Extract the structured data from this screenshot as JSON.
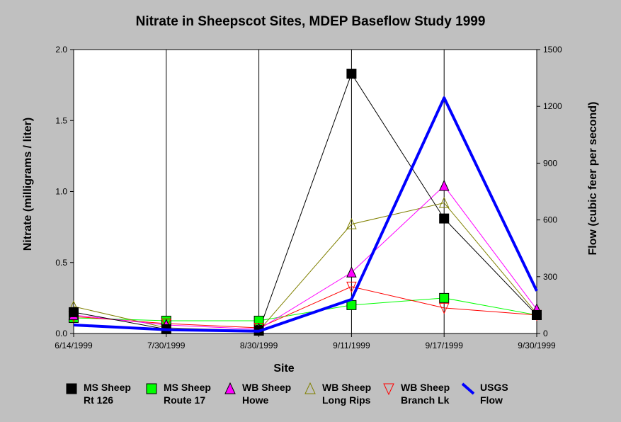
{
  "title": "Nitrate in Sheepscot Sites, MDEP Baseflow Study 1999",
  "chart_data": {
    "type": "line",
    "title": "Nitrate in Sheepscot Sites, MDEP Baseflow Study 1999",
    "xlabel": "Site",
    "ylabel": "Nitrate (milligrams / liter)",
    "ylabel_right": "Flow (cubic feer per second)",
    "categories": [
      "6/14/1999",
      "7/30/1999",
      "8/30/1999",
      "9/11/1999",
      "9/17/1999",
      "9/30/1999"
    ],
    "ylim": [
      0,
      2.0
    ],
    "yticks": [
      "0.0",
      "0.5",
      "1.0",
      "1.5",
      "2.0"
    ],
    "ylim_right": [
      0,
      1500
    ],
    "yticks_right": [
      "0",
      "300",
      "600",
      "900",
      "1200",
      "1500"
    ],
    "grid": "vertical lines at each category",
    "legend_position": "bottom",
    "series": [
      {
        "name": "MS Sheep Rt 126",
        "name_lines": [
          "MS Sheep",
          "Rt 126"
        ],
        "marker": "square-filled",
        "color": "#000000",
        "axis": "left",
        "values": [
          0.15,
          0.03,
          0.02,
          1.83,
          0.81,
          0.13
        ]
      },
      {
        "name": "MS Sheep Route 17",
        "name_lines": [
          "MS Sheep",
          "Route 17"
        ],
        "marker": "square-filled",
        "color": "#00ff00",
        "axis": "left",
        "values": [
          0.11,
          0.09,
          0.09,
          0.2,
          0.25,
          0.13
        ]
      },
      {
        "name": "WB Sheep Howe",
        "name_lines": [
          "WB Sheep",
          "Howe"
        ],
        "marker": "triangle-up-filled",
        "color": "#ff00ff",
        "axis": "left",
        "values": [
          0.13,
          0.06,
          0.03,
          0.43,
          1.04,
          0.17
        ]
      },
      {
        "name": "WB Sheep Long Rips",
        "name_lines": [
          "WB Sheep",
          "Long Rips"
        ],
        "marker": "triangle-up-open",
        "color": "#808000",
        "axis": "left",
        "values": [
          0.19,
          0.04,
          0.02,
          0.77,
          0.92,
          0.14
        ]
      },
      {
        "name": "WB Sheep Branch Lk",
        "name_lines": [
          "WB Sheep",
          "Branch Lk"
        ],
        "marker": "triangle-down-open",
        "color": "#ff0000",
        "axis": "left",
        "values": [
          0.12,
          0.07,
          0.04,
          0.33,
          0.18,
          0.13
        ]
      },
      {
        "name": "USGS Flow",
        "name_lines": [
          "USGS",
          "Flow"
        ],
        "marker": "line",
        "color": "#0000ff",
        "axis": "right",
        "values": [
          45,
          20,
          12,
          180,
          1245,
          225
        ]
      }
    ]
  }
}
